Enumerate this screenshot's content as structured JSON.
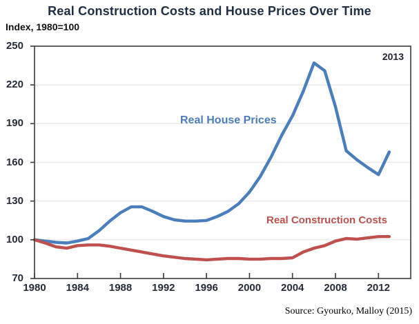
{
  "header": {
    "title": "Real Construction Costs and House Prices Over Time",
    "subtitle": "Index, 1980=100"
  },
  "annotation_2013": "2013",
  "source_note": "Source: Gyourko, Malloy (2015)",
  "colors": {
    "house_prices_line": "#4a7ebc",
    "construction_costs_line": "#c0504d",
    "title_text": "#1f2d45",
    "axis_text": "#252b38",
    "annotation_text": "#222233",
    "gridline": "#e9e9e9",
    "axis_line": "#3a3a3a",
    "background": "#ffffff"
  },
  "chart_data": {
    "type": "line",
    "title": "Real Construction Costs and House Prices Over Time",
    "subtitle": "Index, 1980=100",
    "xlabel": "",
    "ylabel": "Index, 1980=100",
    "x": [
      1980,
      1981,
      1982,
      1983,
      1984,
      1985,
      1986,
      1987,
      1988,
      1989,
      1990,
      1991,
      1992,
      1993,
      1994,
      1995,
      1996,
      1997,
      1998,
      1999,
      2000,
      2001,
      2002,
      2003,
      2004,
      2005,
      2006,
      2007,
      2008,
      2009,
      2010,
      2011,
      2012,
      2013
    ],
    "series": [
      {
        "name": "Real House Prices",
        "color": "#4a7ebc",
        "values": [
          100,
          99,
          98,
          97.5,
          99,
          101,
          107,
          114.5,
          121,
          125.5,
          125.5,
          122,
          118,
          115.5,
          114.5,
          114.5,
          115,
          118,
          122,
          128,
          137,
          149,
          164,
          181,
          196,
          215,
          237,
          231,
          203,
          169,
          162,
          156,
          150.5,
          168
        ]
      },
      {
        "name": "Real Construction Costs",
        "color": "#c0504d",
        "values": [
          100,
          97.5,
          94.5,
          93.5,
          95.5,
          96,
          96,
          95,
          93.5,
          92,
          90.5,
          89,
          87.5,
          86.5,
          85.5,
          85,
          84.5,
          85,
          85.5,
          85.5,
          85,
          85,
          85.5,
          85.5,
          86,
          90.5,
          93.5,
          95.5,
          99,
          101,
          100.5,
          101.5,
          102.5,
          102.5
        ]
      }
    ],
    "ylim": [
      70,
      250
    ],
    "xlim": [
      1980,
      2015
    ],
    "y_ticks": [
      70,
      100,
      130,
      160,
      190,
      220,
      250
    ],
    "x_ticks": [
      1980,
      1984,
      1988,
      1992,
      1996,
      2000,
      2004,
      2008,
      2012
    ],
    "grid": "horizontal-light",
    "legend": "inline-text-labels",
    "annotation": "2013",
    "last_year_label": "2013"
  }
}
